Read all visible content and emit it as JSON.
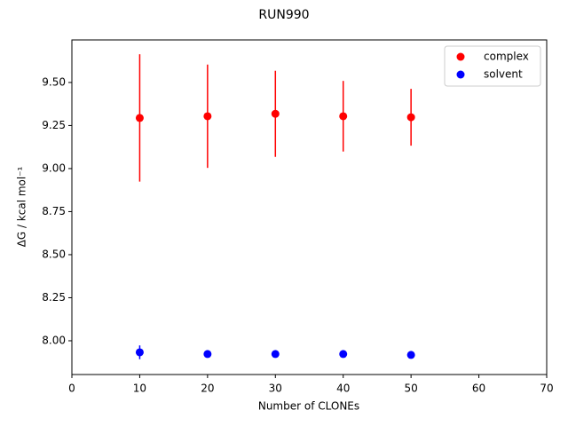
{
  "chart_data": {
    "type": "errorbar-scatter",
    "title": "RUN990",
    "x_label": "Number of CLONEs",
    "y_label": "ΔG / kcal mol⁻¹",
    "x": [
      10,
      20,
      30,
      40,
      50
    ],
    "series": [
      {
        "name": "complex",
        "color": "#ff0000",
        "values": [
          9.294,
          9.304,
          9.318,
          9.304,
          9.298
        ],
        "errors": [
          0.37,
          0.3,
          0.25,
          0.205,
          0.165
        ]
      },
      {
        "name": "solvent",
        "color": "#0000ff",
        "values": [
          7.933,
          7.923,
          7.923,
          7.923,
          7.918
        ],
        "errors": [
          0.04,
          0.015,
          0.01,
          0.01,
          0.005
        ]
      }
    ],
    "xlim": [
      0,
      70
    ],
    "xticks": [
      0,
      10,
      20,
      30,
      40,
      50,
      60,
      70
    ],
    "ylim": [
      7.804,
      9.747
    ],
    "yticks": [
      {
        "value": 8,
        "label": "8.00"
      },
      8.25,
      {
        "value": 8.5,
        "label": "8.50"
      },
      8.75,
      {
        "value": 9,
        "label": "9.00"
      },
      9.25,
      {
        "value": 9.5,
        "label": "9.50"
      }
    ],
    "legend": "upper right"
  }
}
